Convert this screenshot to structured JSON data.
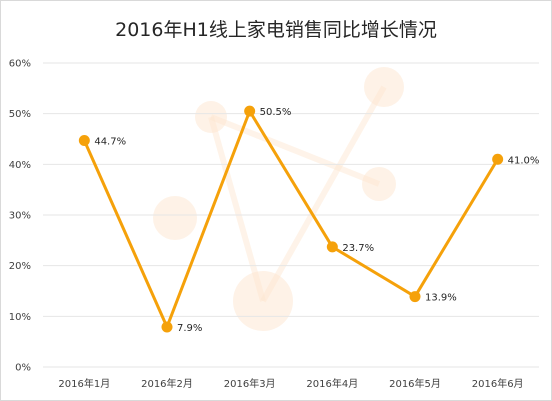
{
  "chart_data": {
    "type": "line",
    "title": "2016年H1线上家电销售同比增长情况",
    "xlabel": "",
    "ylabel": "",
    "categories": [
      "2016年1月",
      "2016年2月",
      "2016年3月",
      "2016年4月",
      "2016年5月",
      "2016年6月"
    ],
    "series": [
      {
        "values": [
          44.7,
          7.9,
          50.5,
          23.7,
          13.9,
          41.0
        ],
        "data_labels": [
          "44.7%",
          "7.9%",
          "50.5%",
          "23.7%",
          "13.9%",
          "41.0%"
        ]
      }
    ],
    "ylim": [
      0,
      60
    ],
    "y_ticks": [
      "0%",
      "10%",
      "20%",
      "30%",
      "40%",
      "50%",
      "60%"
    ],
    "grid": true,
    "legend": "none",
    "colors": {
      "line": "#f5a10a",
      "grid": "#e6e6e6",
      "decor": "#fde6cf"
    }
  }
}
